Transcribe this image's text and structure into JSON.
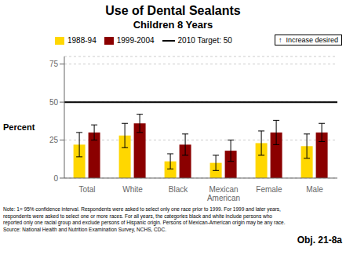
{
  "chart_data": {
    "type": "bar",
    "title": "Use of Dental Sealants",
    "subtitle": "Children 8 Years",
    "categories": [
      "Total",
      "White",
      "Black",
      "Mexican\nAmerican",
      "Female",
      "Male"
    ],
    "series": [
      {
        "name": "1988-94",
        "color": "#FFD700",
        "values": [
          22,
          28,
          11,
          10,
          23,
          21
        ],
        "errors": [
          8,
          8,
          5,
          5,
          8,
          8
        ]
      },
      {
        "name": "1999-2004",
        "color": "#8B0000",
        "values": [
          30,
          36,
          22,
          18,
          30,
          30
        ],
        "errors": [
          5,
          6,
          7,
          7,
          8,
          6
        ]
      }
    ],
    "target": {
      "value": 50,
      "label": "2010 Target: 50",
      "color": "#000000"
    },
    "ylabel": "Percent",
    "ylim": [
      0,
      80
    ],
    "yticks": [
      0,
      25,
      50,
      75
    ],
    "grid": true,
    "legend": "top",
    "annotations": [
      "↑  Increase desired",
      "Note: 1= 95% confidence interval. Respondents were asked to select only one race prior to 1999. For 1999 and later years,\nrespondents were asked to select one or more races. For all years, the categories black and white include persons who\nreported only one racial group and exclude persons of Hispanic origin. Persons of Mexican-American origin may be any race.\nSource: National Health and Nutrition Examination Survey, NCHS, CDC.",
      "Obj. 21-8a"
    ]
  }
}
